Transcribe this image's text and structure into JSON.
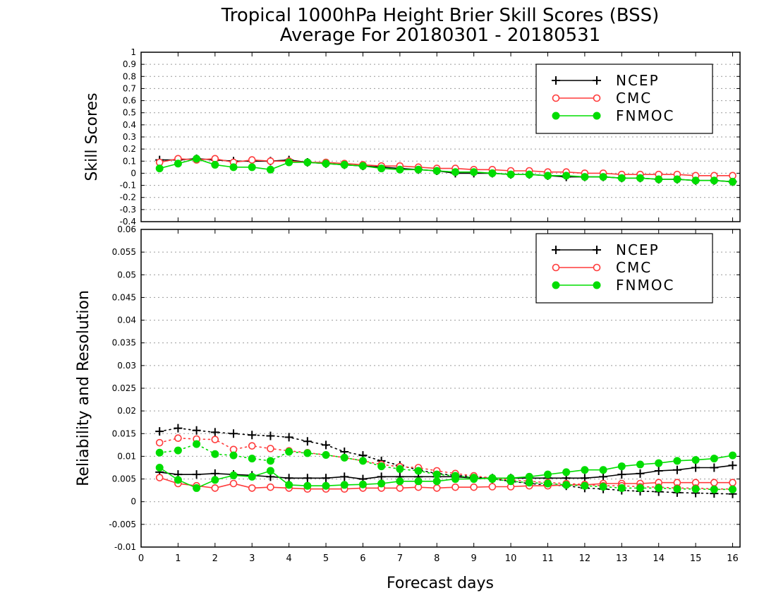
{
  "title_line1": "Tropical 1000hPa Height Brier Skill Scores (BSS)",
  "title_line2": "Average For 20180301 - 20180531",
  "colors": {
    "NCEP": "#000000",
    "CMC": "#ff3b3b",
    "FNMOC": "#00dd00"
  },
  "chart_data": [
    {
      "type": "line",
      "ylabel": "Skill Scores",
      "xlim": [
        0,
        16.2
      ],
      "ylim": [
        -0.4,
        1.0
      ],
      "yticks": [
        "1",
        "0.9",
        "0.8",
        "0.7",
        "0.6",
        "0.5",
        "0.4",
        "0.3",
        "0.2",
        "0.1",
        "0",
        "-0.1",
        "-0.2",
        "-0.3",
        "-0.4"
      ],
      "grid": true,
      "legend": {
        "position": "top-right",
        "entries": [
          "NCEP",
          "CMC",
          "FNMOC"
        ]
      },
      "x": [
        0.5,
        1,
        1.5,
        2,
        2.5,
        3,
        3.5,
        4,
        4.5,
        5,
        5.5,
        6,
        6.5,
        7,
        7.5,
        8,
        8.5,
        9,
        9.5,
        10,
        10.5,
        11,
        11.5,
        12,
        12.5,
        13,
        13.5,
        14,
        14.5,
        15,
        15.5,
        16
      ],
      "series": [
        {
          "name": "NCEP",
          "style": "solid",
          "marker": "plus",
          "values": [
            0.11,
            0.11,
            0.12,
            0.11,
            0.1,
            0.1,
            0.1,
            0.11,
            0.09,
            0.08,
            0.07,
            0.06,
            0.05,
            0.04,
            0.03,
            0.02,
            0.0,
            0.0,
            0.0,
            -0.01,
            -0.01,
            -0.02,
            -0.03,
            -0.03,
            -0.03,
            -0.04,
            -0.04,
            -0.05,
            -0.05,
            -0.06,
            -0.06,
            -0.07
          ]
        },
        {
          "name": "CMC",
          "style": "solid",
          "marker": "open-circle",
          "values": [
            0.09,
            0.12,
            0.11,
            0.12,
            0.09,
            0.11,
            0.1,
            0.1,
            0.09,
            0.09,
            0.08,
            0.07,
            0.06,
            0.06,
            0.05,
            0.04,
            0.04,
            0.03,
            0.03,
            0.02,
            0.02,
            0.01,
            0.01,
            0.0,
            0.0,
            -0.01,
            -0.01,
            -0.01,
            -0.01,
            -0.02,
            -0.02,
            -0.02
          ]
        },
        {
          "name": "FNMOC",
          "style": "solid",
          "marker": "filled-circle",
          "values": [
            0.04,
            0.08,
            0.12,
            0.07,
            0.05,
            0.05,
            0.03,
            0.09,
            0.09,
            0.08,
            0.07,
            0.06,
            0.04,
            0.03,
            0.03,
            0.02,
            0.01,
            0.01,
            0.0,
            -0.01,
            -0.01,
            -0.02,
            -0.02,
            -0.03,
            -0.03,
            -0.04,
            -0.04,
            -0.05,
            -0.05,
            -0.06,
            -0.06,
            -0.07
          ]
        }
      ]
    },
    {
      "type": "line",
      "ylabel": "Reliability and Resolution",
      "xlabel": "Forecast days",
      "xlim": [
        0,
        16.2
      ],
      "ylim": [
        -0.01,
        0.06
      ],
      "yticks": [
        "0.06",
        "0.055",
        "0.05",
        "0.045",
        "0.04",
        "0.035",
        "0.03",
        "0.025",
        "0.02",
        "0.015",
        "0.01",
        "0.005",
        "0",
        "-0.005",
        "-0.01"
      ],
      "xticks": [
        "0",
        "1",
        "2",
        "3",
        "4",
        "5",
        "6",
        "7",
        "8",
        "9",
        "10",
        "11",
        "12",
        "13",
        "14",
        "15",
        "16"
      ],
      "grid": true,
      "legend": {
        "position": "top-right",
        "entries": [
          "NCEP",
          "CMC",
          "FNMOC"
        ]
      },
      "x": [
        0.5,
        1,
        1.5,
        2,
        2.5,
        3,
        3.5,
        4,
        4.5,
        5,
        5.5,
        6,
        6.5,
        7,
        7.5,
        8,
        8.5,
        9,
        9.5,
        10,
        10.5,
        11,
        11.5,
        12,
        12.5,
        13,
        13.5,
        14,
        14.5,
        15,
        15.5,
        16
      ],
      "series": [
        {
          "name": "NCEP",
          "style": "solid",
          "marker": "plus",
          "values": [
            0.0065,
            0.006,
            0.006,
            0.0062,
            0.006,
            0.0058,
            0.0055,
            0.0052,
            0.0052,
            0.0052,
            0.0055,
            0.005,
            0.0055,
            0.0055,
            0.0055,
            0.0055,
            0.0055,
            0.0052,
            0.0052,
            0.0052,
            0.0052,
            0.0052,
            0.0052,
            0.0052,
            0.0055,
            0.006,
            0.0062,
            0.0068,
            0.007,
            0.0075,
            0.0075,
            0.008
          ]
        },
        {
          "name": "NCEP",
          "style": "dotted",
          "marker": "plus",
          "values": [
            0.0155,
            0.0162,
            0.0157,
            0.0153,
            0.015,
            0.0147,
            0.0145,
            0.0142,
            0.0133,
            0.0125,
            0.011,
            0.0102,
            0.009,
            0.008,
            0.007,
            0.0062,
            0.0058,
            0.0055,
            0.005,
            0.0045,
            0.004,
            0.0037,
            0.0035,
            0.003,
            0.0028,
            0.0025,
            0.0023,
            0.0022,
            0.002,
            0.0019,
            0.0018,
            0.0017
          ]
        },
        {
          "name": "CMC",
          "style": "solid",
          "marker": "open-circle",
          "values": [
            0.0053,
            0.004,
            0.0035,
            0.003,
            0.004,
            0.003,
            0.0032,
            0.003,
            0.0028,
            0.0028,
            0.0028,
            0.003,
            0.003,
            0.003,
            0.0032,
            0.003,
            0.0032,
            0.0032,
            0.0033,
            0.0033,
            0.0035,
            0.0035,
            0.0037,
            0.0037,
            0.004,
            0.004,
            0.004,
            0.0042,
            0.0042,
            0.0042,
            0.0042,
            0.0042
          ]
        },
        {
          "name": "CMC",
          "style": "dotted",
          "marker": "open-circle",
          "values": [
            0.013,
            0.014,
            0.0138,
            0.0137,
            0.0115,
            0.0123,
            0.0117,
            0.0112,
            0.0108,
            0.0103,
            0.0097,
            0.009,
            0.0082,
            0.0077,
            0.0075,
            0.0068,
            0.0062,
            0.0057,
            0.0052,
            0.0048,
            0.0045,
            0.0042,
            0.004,
            0.0038,
            0.0035,
            0.0035,
            0.0033,
            0.0032,
            0.003,
            0.003,
            0.0028,
            0.0028
          ]
        },
        {
          "name": "FNMOC",
          "style": "solid",
          "marker": "filled-circle",
          "values": [
            0.0075,
            0.0048,
            0.003,
            0.0048,
            0.0058,
            0.0055,
            0.0068,
            0.0037,
            0.0035,
            0.0035,
            0.0037,
            0.0038,
            0.004,
            0.0045,
            0.0045,
            0.0045,
            0.005,
            0.005,
            0.0052,
            0.0052,
            0.0055,
            0.006,
            0.0065,
            0.007,
            0.007,
            0.0078,
            0.0082,
            0.0085,
            0.009,
            0.0092,
            0.0095,
            0.0102
          ]
        },
        {
          "name": "FNMOC",
          "style": "dotted",
          "marker": "filled-circle",
          "values": [
            0.0108,
            0.0113,
            0.0127,
            0.0105,
            0.0102,
            0.0095,
            0.009,
            0.011,
            0.0107,
            0.0103,
            0.0097,
            0.009,
            0.0078,
            0.0072,
            0.0068,
            0.006,
            0.0057,
            0.0053,
            0.005,
            0.0045,
            0.0042,
            0.004,
            0.0037,
            0.0035,
            0.0033,
            0.003,
            0.003,
            0.003,
            0.0028,
            0.0028,
            0.0027,
            0.0027
          ]
        }
      ]
    }
  ]
}
